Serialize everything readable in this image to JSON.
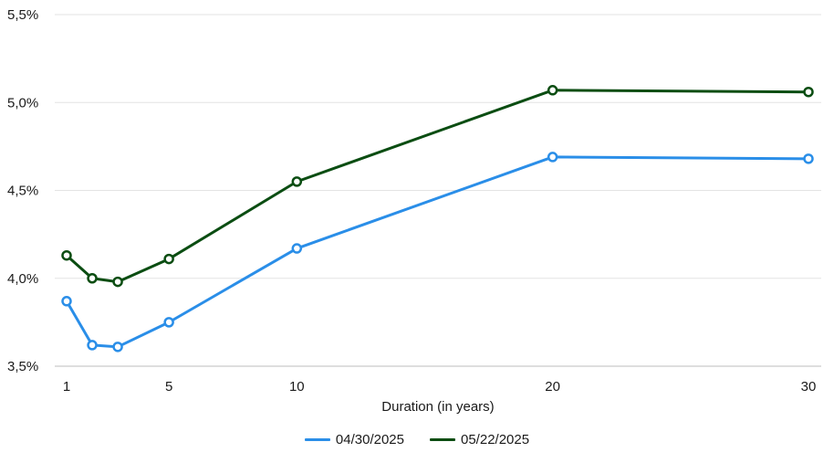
{
  "chart_data": {
    "type": "line",
    "title": "",
    "xlabel": "Duration (in years)",
    "ylabel": "",
    "x_ticks": [
      1,
      5,
      10,
      20,
      30
    ],
    "x_tick_labels": [
      "1",
      "5",
      "10",
      "20",
      "30"
    ],
    "y_ticks": [
      3.5,
      4.0,
      4.5,
      5.0,
      5.5
    ],
    "y_tick_labels": [
      "3,5%",
      "4,0%",
      "4,5%",
      "5,0%",
      "5,5%"
    ],
    "xlim": [
      1,
      30
    ],
    "ylim": [
      3.5,
      5.5
    ],
    "grid": "horizontal",
    "legend_position": "bottom-center",
    "x": [
      1,
      2,
      3,
      5,
      10,
      20,
      30
    ],
    "series": [
      {
        "name": "04/30/2025",
        "color": "#2a8ee8",
        "values": [
          3.87,
          3.62,
          3.61,
          3.75,
          4.17,
          4.69,
          4.68
        ]
      },
      {
        "name": "05/22/2025",
        "color": "#0b4d12",
        "values": [
          4.13,
          4.0,
          3.98,
          4.11,
          4.55,
          5.07,
          5.06
        ]
      }
    ]
  }
}
